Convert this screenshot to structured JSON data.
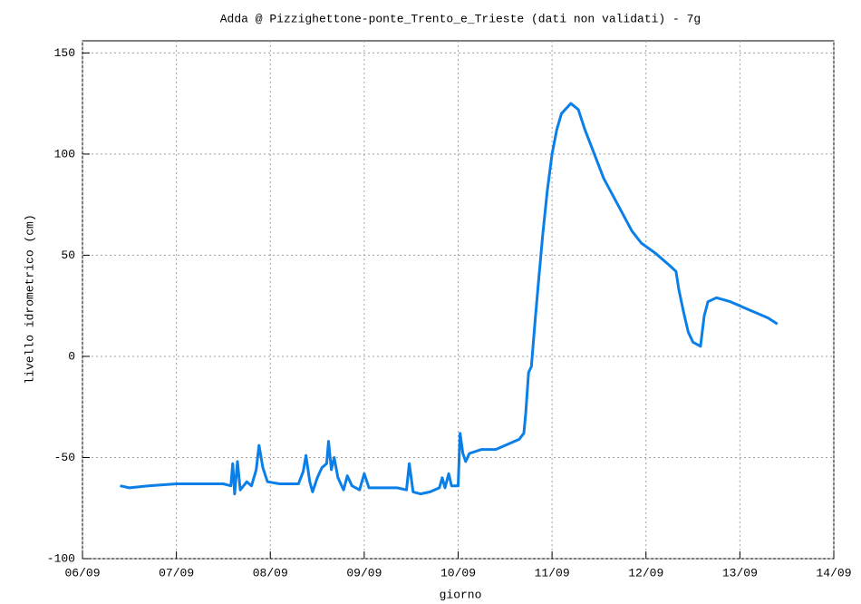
{
  "chart_data": {
    "type": "line",
    "title": "Adda @ Pizzighettone-ponte_Trento_e_Trieste (dati non validati) - 7g",
    "x_label": "giorno",
    "y_label": "livello idrometrico (cm)",
    "xlim": [
      6,
      14
    ],
    "xticks": [
      {
        "value": 6,
        "label": "06/09"
      },
      {
        "value": 7,
        "label": "07/09"
      },
      {
        "value": 8,
        "label": "08/09"
      },
      {
        "value": 9,
        "label": "09/09"
      },
      {
        "value": 10,
        "label": "10/09"
      },
      {
        "value": 11,
        "label": "11/09"
      },
      {
        "value": 12,
        "label": "12/09"
      },
      {
        "value": 13,
        "label": "13/09"
      },
      {
        "value": 14,
        "label": "14/09"
      }
    ],
    "ylim": [
      -100,
      156
    ],
    "yticks": [
      -100,
      -50,
      0,
      50,
      100,
      150
    ],
    "grid": true,
    "x": [
      6.4,
      6.5,
      6.7,
      7.0,
      7.3,
      7.5,
      7.58,
      7.6,
      7.62,
      7.65,
      7.68,
      7.75,
      7.8,
      7.85,
      7.88,
      7.92,
      7.97,
      8.1,
      8.3,
      8.35,
      8.38,
      8.42,
      8.45,
      8.5,
      8.55,
      8.6,
      8.62,
      8.65,
      8.68,
      8.72,
      8.78,
      8.82,
      8.87,
      8.95,
      9.0,
      9.05,
      9.2,
      9.35,
      9.45,
      9.48,
      9.52,
      9.6,
      9.7,
      9.8,
      9.83,
      9.86,
      9.9,
      9.93,
      10.0,
      10.02,
      10.05,
      10.08,
      10.12,
      10.25,
      10.4,
      10.55,
      10.65,
      10.7,
      10.72,
      10.75,
      10.78,
      10.82,
      10.85,
      10.9,
      10.95,
      11.0,
      11.05,
      11.1,
      11.2,
      11.28,
      11.35,
      11.45,
      11.55,
      11.7,
      11.85,
      11.95,
      12.1,
      12.25,
      12.32,
      12.35,
      12.4,
      12.45,
      12.5,
      12.58,
      12.62,
      12.66,
      12.75,
      12.9,
      13.0,
      13.1,
      13.2,
      13.3,
      13.4
    ],
    "series": [
      {
        "name": "livello",
        "color": "#0a7fe8",
        "values": [
          -64,
          -65,
          -64,
          -63,
          -63,
          -63,
          -64,
          -53,
          -68,
          -52,
          -66,
          -62,
          -64,
          -56,
          -44,
          -55,
          -62,
          -63,
          -63,
          -57,
          -49,
          -62,
          -67,
          -60,
          -55,
          -53,
          -42,
          -56,
          -50,
          -60,
          -66,
          -59,
          -64,
          -66,
          -58,
          -65,
          -65,
          -65,
          -66,
          -53,
          -67,
          -68,
          -67,
          -65,
          -60,
          -65,
          -58,
          -64,
          -64,
          -38,
          -48,
          -52,
          -48,
          -46,
          -46,
          -43,
          -41,
          -38,
          -28,
          -8,
          -5,
          18,
          34,
          60,
          82,
          100,
          112,
          120,
          125,
          122,
          112,
          100,
          88,
          75,
          62,
          56,
          51,
          45,
          42,
          33,
          22,
          12,
          7,
          5,
          20,
          27,
          29,
          27,
          25,
          23,
          21,
          19,
          16
        ]
      }
    ]
  }
}
